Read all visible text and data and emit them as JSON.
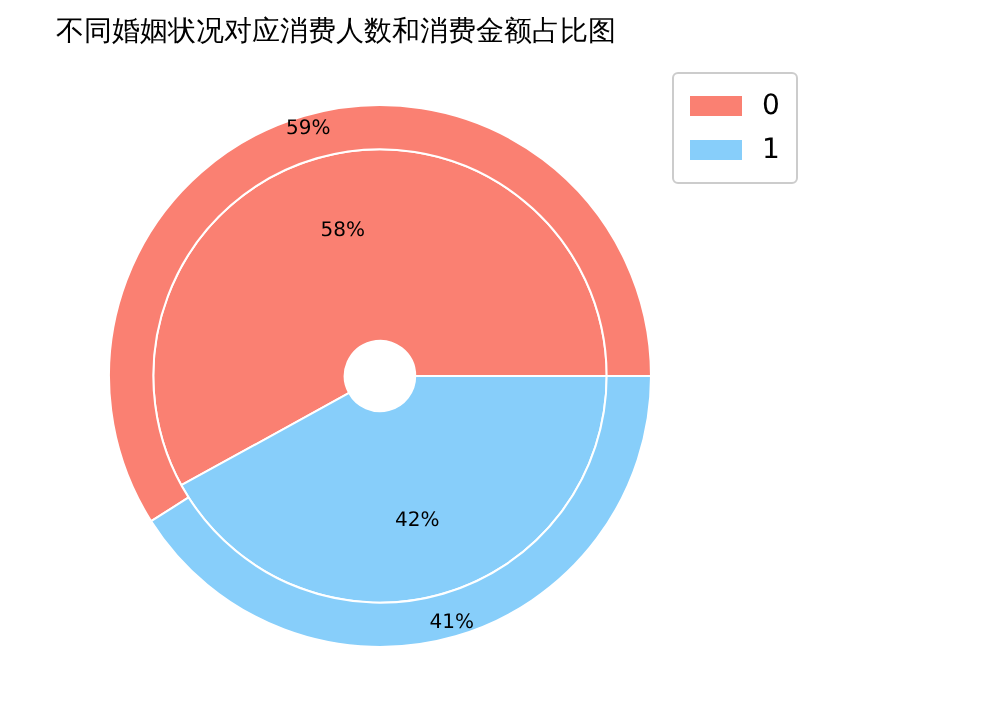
{
  "chart_data": {
    "type": "donut",
    "title": "不同婚姻状况对应消费人数和消费金额占比图",
    "categories": [
      "0",
      "1"
    ],
    "colors": [
      "#fa8072",
      "#87cefa"
    ],
    "legend": "top right",
    "series": [
      {
        "values": [
          59,
          41
        ],
        "value_labels": [
          "59%",
          "41%"
        ]
      },
      {
        "values": [
          58,
          42
        ],
        "value_labels": [
          "58%",
          "42%"
        ]
      }
    ]
  }
}
